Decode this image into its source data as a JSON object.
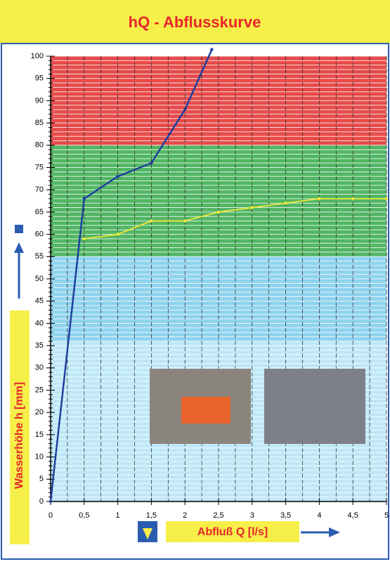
{
  "chart_data": {
    "type": "line",
    "title": "hQ - Abflusskurve",
    "x_label": "Abfluß Q [l/s]",
    "y_label": "Wasserhöhe h [mm]",
    "series": [
      {
        "name": null,
        "color": "#1f3f9f",
        "x": [
          0,
          0.5,
          1,
          1.5,
          2,
          2.4
        ],
        "values": [
          0,
          68,
          73,
          76,
          88,
          101.5
        ]
      },
      {
        "name": null,
        "color": "#f2e83a",
        "x": [
          0.5,
          1,
          1.5,
          2,
          2.5,
          3,
          3.5,
          4,
          4.5,
          5
        ],
        "values": [
          59,
          60,
          63,
          63,
          65,
          66,
          67,
          68,
          68,
          68
        ]
      }
    ],
    "bands": [
      {
        "from": 80,
        "to": 100,
        "color": "#e74b4b"
      },
      {
        "from": 55,
        "to": 80,
        "color": "#52b664"
      },
      {
        "from": 36,
        "to": 55,
        "color": "#8fd3ee"
      },
      {
        "from": 0,
        "to": 36,
        "color": "#bfe8f7"
      }
    ],
    "xlim": [
      0,
      5
    ],
    "ylim": [
      0,
      100
    ],
    "xticks": [
      0,
      {
        "value": 0.5,
        "label": "0,5"
      },
      1,
      {
        "value": 1.5,
        "label": "1,5"
      },
      2,
      {
        "value": 2.5,
        "label": "2,5"
      },
      3,
      {
        "value": 3.5,
        "label": "3,5"
      },
      4,
      {
        "value": 4.5,
        "label": "4,5"
      },
      5
    ],
    "yticks": [
      0,
      5,
      10,
      15,
      20,
      25,
      30,
      35,
      40,
      45,
      50,
      55,
      60,
      65,
      70,
      75,
      80,
      85,
      90,
      95,
      100
    ],
    "grid": true
  }
}
